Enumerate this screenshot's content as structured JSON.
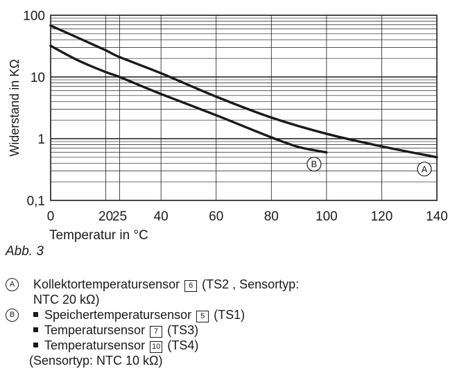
{
  "chart_data": {
    "type": "line",
    "xlabel": "Temperatur in °C",
    "ylabel": "Widerstand in KΩ",
    "x_ticks": [
      "0",
      "20",
      "25",
      "40",
      "60",
      "80",
      "100",
      "120",
      "140"
    ],
    "x_tick_values": [
      0,
      20,
      25,
      40,
      60,
      80,
      100,
      120,
      140
    ],
    "y_ticks": [
      "0,1",
      "1",
      "10",
      "100"
    ],
    "y_tick_values": [
      0.1,
      1,
      10,
      100
    ],
    "xlim": [
      0,
      140
    ],
    "ylim": [
      0.1,
      100
    ],
    "y_scale": "log",
    "grid": true,
    "series": [
      {
        "name": "A",
        "x": [
          0,
          10,
          20,
          25,
          40,
          60,
          80,
          100,
          120,
          140
        ],
        "y": [
          68,
          43,
          27,
          21,
          11.5,
          4.8,
          2.2,
          1.2,
          0.75,
          0.5
        ]
      },
      {
        "name": "B",
        "x": [
          0,
          10,
          20,
          25,
          40,
          60,
          80,
          90,
          100
        ],
        "y": [
          32,
          18.5,
          12,
          10,
          5.3,
          2.4,
          1.05,
          0.73,
          0.6
        ]
      }
    ]
  },
  "figure": {
    "caption": "Abb. 3"
  },
  "legend": {
    "a": {
      "marker": "A",
      "text_before": "Kollektortemperatursensor",
      "ref": "6",
      "text_after": "(TS2 , Sensortyp:",
      "text_line2": "NTC 20 kΩ)"
    },
    "b": {
      "marker": "B",
      "items": [
        {
          "text": "Speichertemperatursensor",
          "ref": "5",
          "suffix": "(TS1)"
        },
        {
          "text": "Temperatursensor",
          "ref": "7",
          "suffix": "(TS3)"
        },
        {
          "text": "Temperatursensor",
          "ref": "10",
          "suffix": "(TS4)"
        }
      ],
      "note": "(Sensortyp: NTC 10 kΩ)"
    }
  },
  "colors": {
    "line": "#1a1a1a",
    "grid": "#1a1a1a",
    "background": "#ffffff"
  }
}
